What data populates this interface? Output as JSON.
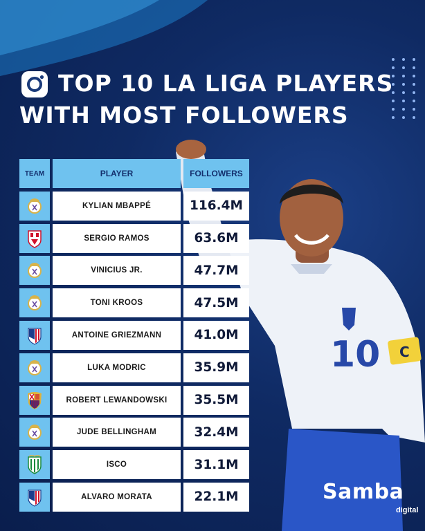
{
  "title": {
    "line1": "TOP 10 LA LIGA PLAYERS",
    "line2": "WITH MOST FOLLOWERS",
    "icon": "instagram-icon"
  },
  "table": {
    "headers": {
      "team": "TEAM",
      "player": "PLAYER",
      "followers": "FOLLOWERS"
    },
    "rows": [
      {
        "team": "real-madrid",
        "player": "KYLIAN MBAPPÉ",
        "followers": "116.4M"
      },
      {
        "team": "sevilla",
        "player": "SERGIO RAMOS",
        "followers": "63.6M"
      },
      {
        "team": "real-madrid",
        "player": "VINICIUS JR.",
        "followers": "47.7M"
      },
      {
        "team": "real-madrid",
        "player": "TONI KROOS",
        "followers": "47.5M"
      },
      {
        "team": "atletico-madrid",
        "player": "ANTOINE GRIEZMANN",
        "followers": "41.0M"
      },
      {
        "team": "real-madrid",
        "player": "LUKA MODRIC",
        "followers": "35.9M"
      },
      {
        "team": "barcelona",
        "player": "ROBERT LEWANDOWSKI",
        "followers": "35.5M"
      },
      {
        "team": "real-madrid",
        "player": "JUDE BELLINGHAM",
        "followers": "32.4M"
      },
      {
        "team": "real-betis",
        "player": "ISCO",
        "followers": "31.1M"
      },
      {
        "team": "atletico-madrid",
        "player": "ALVARO MORATA",
        "followers": "22.1M"
      }
    ]
  },
  "player_image": {
    "shirt_number": "10",
    "armband": "C"
  },
  "brand": {
    "name": "Samba",
    "sub": "digital"
  },
  "colors": {
    "accent": "#6fc2ef",
    "background": "#0f2a63",
    "text": "#ffffff"
  }
}
